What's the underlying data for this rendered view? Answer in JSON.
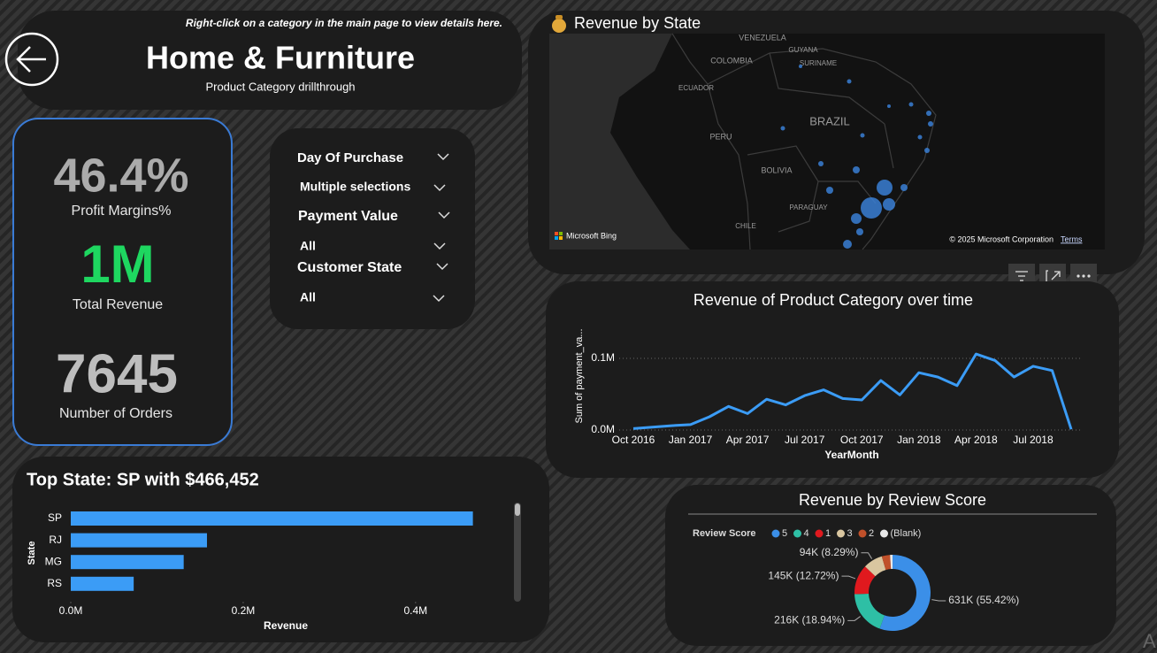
{
  "header": {
    "instruction": "Right-click on a category in the main page to view details here.",
    "title": "Home & Furniture",
    "subtitle": "Product Category drillthrough"
  },
  "kpis": [
    {
      "value": "46.4%",
      "label": "Profit Margins%"
    },
    {
      "value": "1M",
      "label": "Total Revenue"
    },
    {
      "value": "7645",
      "label": "Number of Orders"
    }
  ],
  "slicers": [
    {
      "label": "Day Of Purchase",
      "selection": "Multiple selections"
    },
    {
      "label": "Payment Value",
      "selection": "All"
    },
    {
      "label": "Customer State",
      "selection": "All"
    }
  ],
  "map": {
    "title": "Revenue by State",
    "labels": [
      "VENEZUELA",
      "GUYANA",
      "SURINAME",
      "COLOMBIA",
      "ECUADOR",
      "BRAZIL",
      "PERU",
      "BOLIVIA",
      "PARAGUAY",
      "CHILE"
    ],
    "logo": "Microsoft Bing",
    "attribution": "© 2025 Microsoft Corporation",
    "terms": "Terms"
  },
  "chart_data": [
    {
      "type": "line",
      "title": "Revenue of Product Category over time",
      "y_label": "Sum of payment_va...",
      "x_label": "YearMonth",
      "categories": [
        "Oct 2016",
        null,
        null,
        "Jan 2017",
        null,
        null,
        "Apr 2017",
        null,
        null,
        "Jul 2017",
        null,
        null,
        "Oct 2017",
        null,
        null,
        "Jan 2018",
        null,
        null,
        "Apr 2018",
        null,
        null,
        "Jul 2018",
        null,
        null
      ],
      "values": [
        2000,
        4000,
        6000,
        7500,
        18500,
        33000,
        23000,
        43000,
        35000,
        48000,
        56000,
        44000,
        42000,
        69000,
        49000,
        80000,
        74000,
        62000,
        106000,
        97000,
        74000,
        89000,
        83000,
        1000
      ],
      "color": "#3b9cf6",
      "ylim": [
        0,
        150000
      ],
      "yticks": [
        {
          "value": 0,
          "label": "0.0M"
        },
        {
          "value": 100000,
          "label": "0.1M"
        }
      ],
      "grid": true
    },
    {
      "type": "bar",
      "orientation": "horizontal",
      "title": "Top State: SP with $466,452",
      "y_label": "State",
      "x_label": "Revenue",
      "categories": [
        "SP",
        "RJ",
        "MG",
        "RS"
      ],
      "values": [
        466452,
        158000,
        131000,
        73000
      ],
      "color": "#3b9cf6",
      "xlim": [
        0,
        512000
      ],
      "xticks": [
        {
          "value": 0,
          "label": "0.0M"
        },
        {
          "value": 200000,
          "label": "0.2M"
        },
        {
          "value": 400000,
          "label": "0.4M"
        }
      ]
    },
    {
      "type": "pie",
      "donut": true,
      "title": "Revenue by Review Score",
      "legend_title": "Review Score",
      "categories": [
        "5",
        "4",
        "1",
        "3",
        "2",
        "(Blank)"
      ],
      "values": [
        631000,
        216000,
        145000,
        94000,
        40000,
        12000
      ],
      "value_labels": [
        "631K (55.42%)",
        "216K (18.94%)",
        "145K (12.72%)",
        "94K (8.29%)",
        null,
        null
      ],
      "colors": [
        "#3b8fe8",
        "#2ebfa5",
        "#e0191e",
        "#d9c6a0",
        "#c0502a",
        "#e8e8e8"
      ]
    }
  ]
}
